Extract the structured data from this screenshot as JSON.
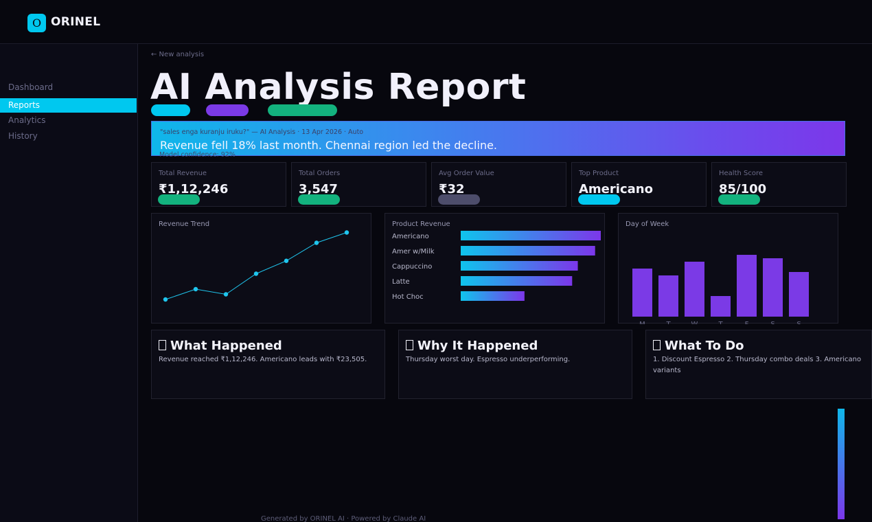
{
  "app": {
    "name": "ORINEL",
    "logo_glyph": "O"
  },
  "sidebar": {
    "items": [
      {
        "label": "Dashboard",
        "active": false
      },
      {
        "label": "Reports",
        "active": true
      },
      {
        "label": "Analytics",
        "active": false
      },
      {
        "label": "History",
        "active": false
      }
    ]
  },
  "header": {
    "back_link": "← New analysis",
    "title": "AI Analysis Report"
  },
  "pills": [
    {
      "color": "#00c8ef"
    },
    {
      "color": "#7b3ae6"
    },
    {
      "color": "#13b27e"
    }
  ],
  "banner": {
    "meta": "\"sales enga kuranju iruku?\" — AI Analysis · 13 Apr 2026 · Auto",
    "headline": "Revenue fell 18% last month. Chennai region led the decline.",
    "confidence": "Model confidence: 92%"
  },
  "kpis": [
    {
      "label": "Total Revenue",
      "value": "₹1,12,246",
      "pill_color": "#13b27e"
    },
    {
      "label": "Total Orders",
      "value": "3,547",
      "pill_color": "#13b27e"
    },
    {
      "label": "Avg Order Value",
      "value": "₹32",
      "pill_color": "#4d4d6b"
    },
    {
      "label": "Top Product",
      "value": "Americano",
      "pill_color": "#00c8ef"
    },
    {
      "label": "Health Score",
      "value": "85/100",
      "pill_color": "#13b27e"
    }
  ],
  "chart_data": [
    {
      "type": "line",
      "title": "Revenue Trend",
      "values": [
        20,
        40,
        30,
        70,
        95,
        130,
        150
      ],
      "ylim": [
        0,
        160
      ],
      "color": "#1fc6ee"
    },
    {
      "type": "bar",
      "orientation": "horizontal",
      "title": "Product Revenue",
      "categories": [
        "Americano",
        "Amer w/Milk",
        "Cappuccino",
        "Latte",
        "Hot Choc"
      ],
      "values": [
        23505,
        22550,
        19650,
        18700,
        10700
      ],
      "xlim": [
        0,
        23505
      ]
    },
    {
      "type": "bar",
      "title": "Day of Week",
      "categories": [
        "M",
        "T",
        "W",
        "T",
        "F",
        "S",
        "S"
      ],
      "values": [
        70,
        60,
        80,
        30,
        90,
        85,
        65
      ],
      "ylim": [
        0,
        100
      ],
      "color": "#7b3ae6"
    }
  ],
  "insights": [
    {
      "title": "What Happened",
      "body": "Revenue reached ₹1,12,246. Americano leads with ₹23,505."
    },
    {
      "title": "Why It Happened",
      "body": "Thursday worst day. Espresso underperforming."
    },
    {
      "title": "What To Do",
      "body": "1. Discount Espresso 2. Thursday combo deals 3. Americano variants"
    }
  ],
  "footer": "Generated by ORINEL AI · Powered by Claude AI"
}
